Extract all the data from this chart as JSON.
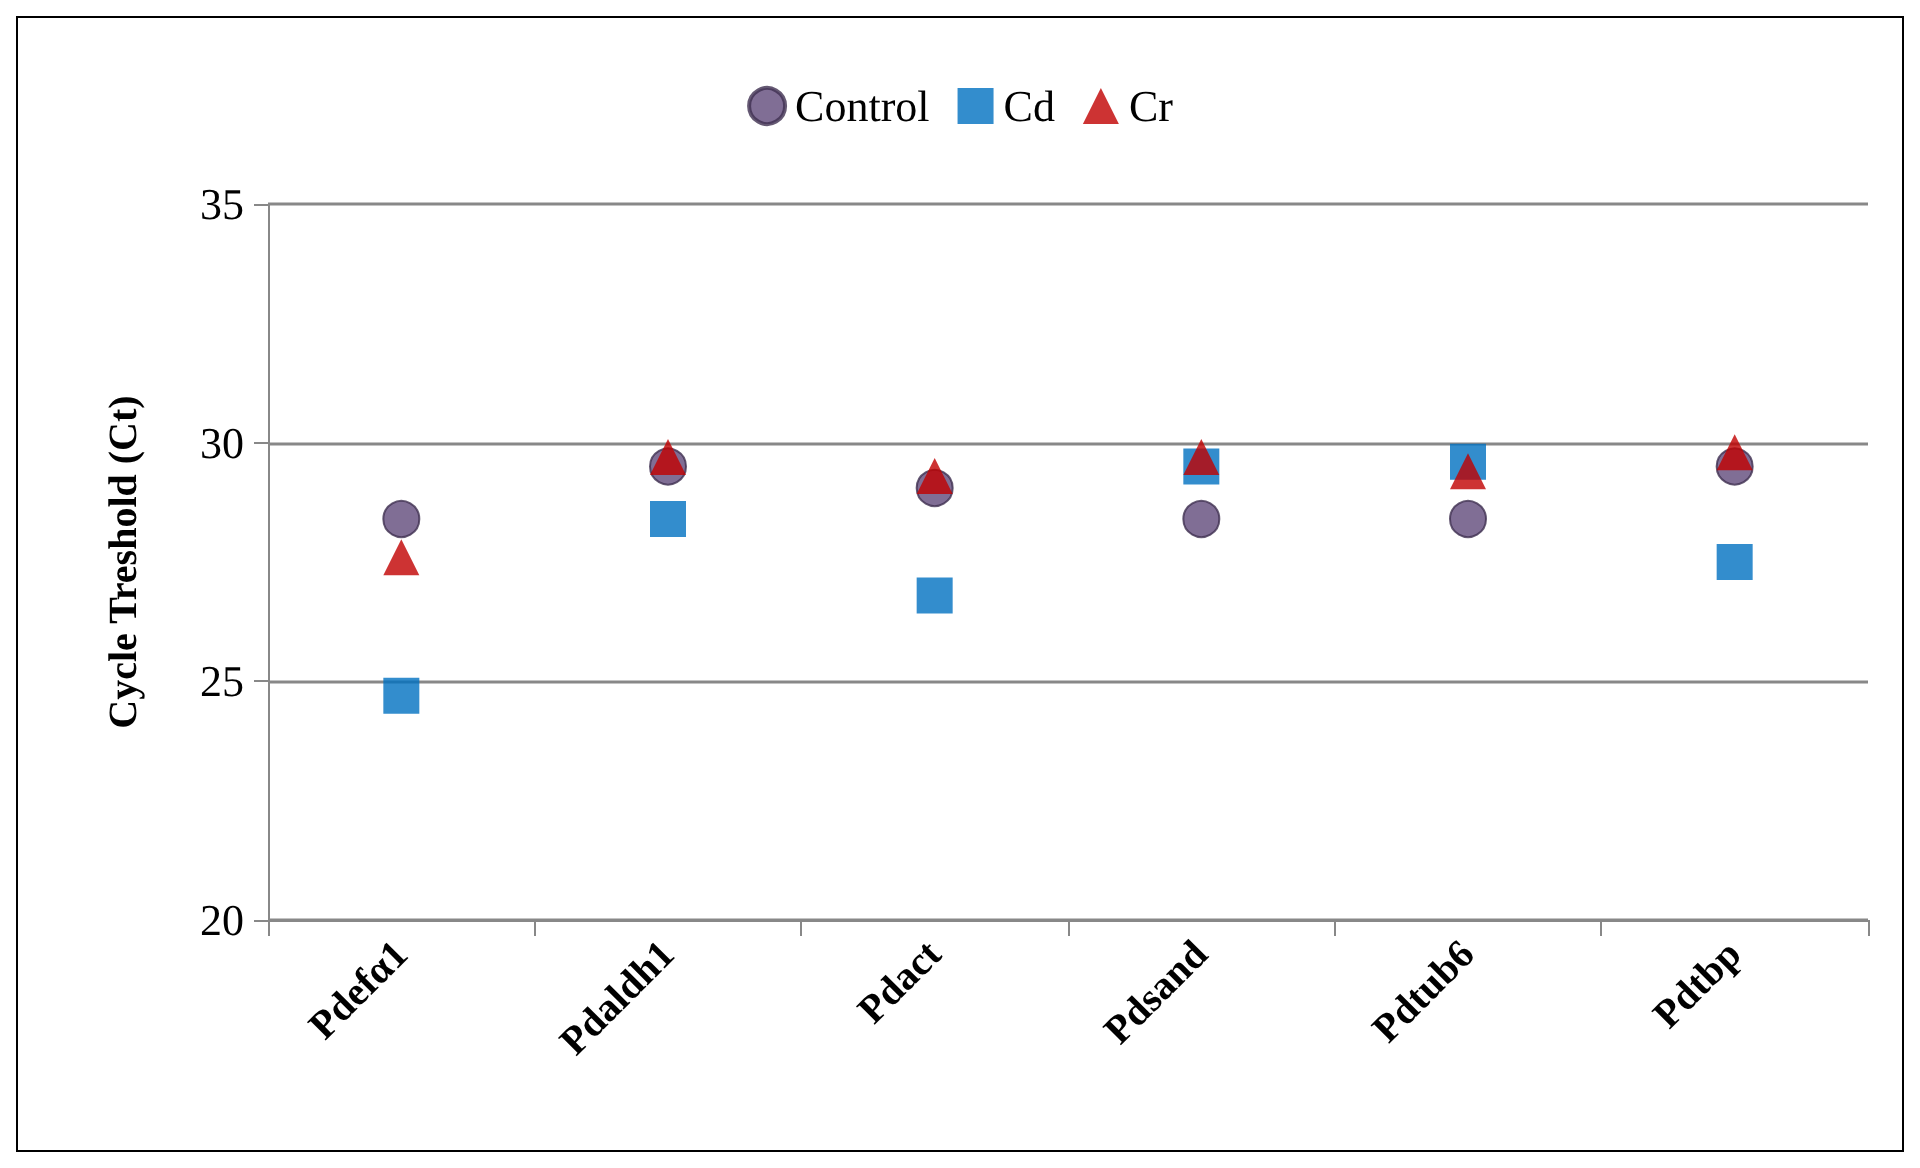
{
  "chart_data": {
    "type": "scatter",
    "ylabel": "Cycle Treshold (Ct)",
    "categories": [
      "Pdefα1",
      "Pdaldh1",
      "Pdact",
      "Pdsand",
      "Pdtub6",
      "Pdtbp"
    ],
    "series": [
      {
        "name": "Control",
        "color": "#604a7b",
        "marker": "circle",
        "values": [
          28.4,
          29.5,
          29.05,
          28.4,
          28.4,
          29.5
        ]
      },
      {
        "name": "Cd",
        "color": "#0070c0",
        "marker": "square",
        "values": [
          24.7,
          28.4,
          26.8,
          29.5,
          29.6,
          27.5
        ]
      },
      {
        "name": "Cr",
        "color": "#c00000",
        "marker": "triangle",
        "values": [
          27.6,
          29.7,
          29.3,
          29.7,
          29.4,
          29.8
        ]
      }
    ],
    "ylim": [
      20,
      35
    ],
    "yticks": [
      20,
      25,
      30,
      35
    ],
    "grid": "y",
    "legend": "top"
  }
}
